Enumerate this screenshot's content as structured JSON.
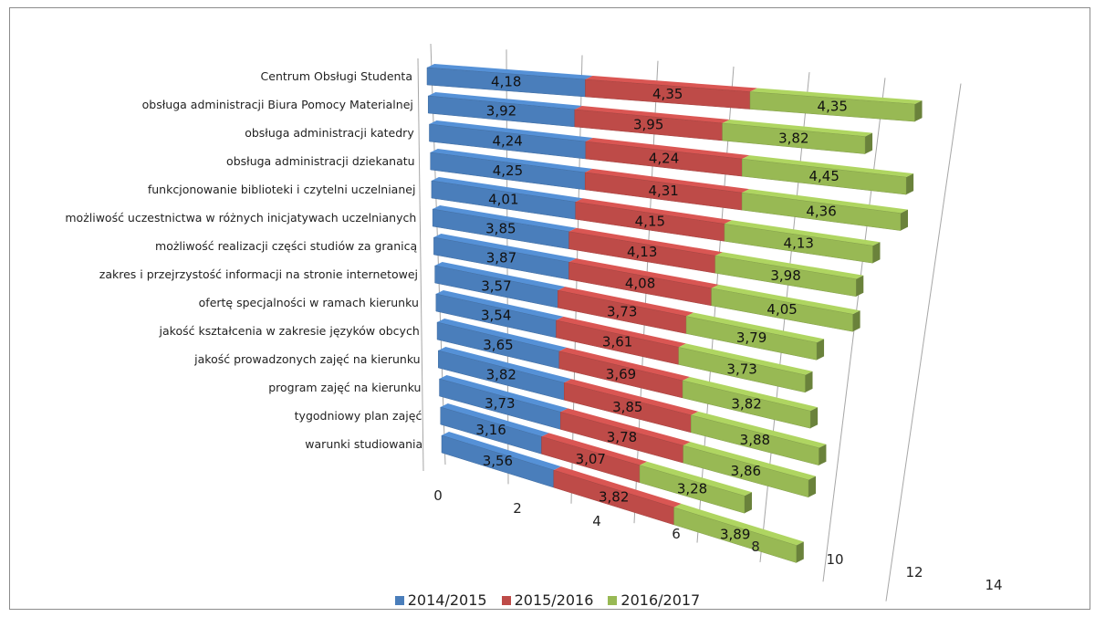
{
  "chart_data": {
    "type": "bar",
    "orientation": "horizontal",
    "stacked": true,
    "style": "3d-perspective",
    "categories": [
      "Centrum Obsługi Studenta",
      "obsługa administracji Biura Pomocy Materialnej",
      "obsługa administracji katedry",
      "obsługa administracji dziekanatu",
      "funkcjonowanie biblioteki i czytelni uczelnianej",
      "możliwość uczestnictwa w różnych inicjatywach uczelnianych",
      "możliwość realizacji części studiów za granicą",
      "zakres i przejrzystość informacji na stronie internetowej",
      "ofertę specjalności w ramach kierunku",
      "jakość kształcenia w zakresie języków obcych",
      "jakość prowadzonych zajęć na kierunku",
      "program zajęć na kierunku",
      "tygodniowy plan zajęć",
      "warunki studiowania"
    ],
    "series": [
      {
        "name": "2014/2015",
        "color": "#4a7ebb",
        "values": [
          4.18,
          3.92,
          4.24,
          4.25,
          4.01,
          3.85,
          3.87,
          3.57,
          3.54,
          3.65,
          3.82,
          3.73,
          3.16,
          3.56
        ],
        "labels": [
          "4,18",
          "3,92",
          "4,24",
          "4,25",
          "4,01",
          "3,85",
          "3,87",
          "3,57",
          "3,54",
          "3,65",
          "3,82",
          "3,73",
          "3,16",
          "3,56"
        ]
      },
      {
        "name": "2015/2016",
        "color": "#be4b48",
        "values": [
          4.35,
          3.95,
          4.24,
          4.31,
          4.15,
          4.13,
          4.08,
          3.73,
          3.61,
          3.69,
          3.85,
          3.78,
          3.07,
          3.82
        ],
        "labels": [
          "4,35",
          "3,95",
          "4,24",
          "4,31",
          "4,15",
          "4,13",
          "4,08",
          "3,73",
          "3,61",
          "3,69",
          "3,85",
          "3,78",
          "3,07",
          "3,82"
        ]
      },
      {
        "name": "2016/2017",
        "color": "#98b954",
        "values": [
          4.35,
          3.82,
          4.45,
          4.36,
          4.13,
          3.98,
          4.05,
          3.79,
          3.73,
          3.82,
          3.88,
          3.86,
          3.28,
          3.89
        ],
        "labels": [
          "4,35",
          "3,82",
          "4,45",
          "4,36",
          "4,13",
          "3,98",
          "4,05",
          "3,79",
          "3,73",
          "3,82",
          "3,88",
          "3,86",
          "3,28",
          "3,89"
        ]
      }
    ],
    "x_ticks": [
      "0",
      "2",
      "4",
      "6",
      "8",
      "10",
      "12",
      "14"
    ],
    "xlim": [
      0,
      14
    ],
    "grid": true,
    "legend_position": "bottom"
  }
}
